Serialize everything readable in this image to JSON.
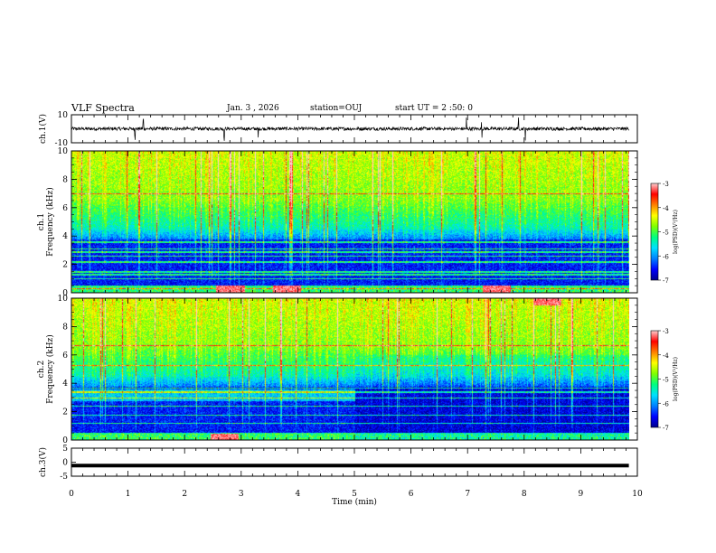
{
  "header": {
    "title": "VLF Spectra",
    "date": "Jan. 3 , 2026",
    "station": "station=OUJ",
    "start_time": "start UT =  2 :50: 0"
  },
  "colors": {
    "colormap": [
      "#00008c",
      "#0000ff",
      "#0080ff",
      "#00e0ff",
      "#00ff80",
      "#80ff00",
      "#ffff00",
      "#ff8000",
      "#ff0000",
      "#ffd0d0"
    ],
    "trace": "#000000",
    "axis": "#000000"
  },
  "chart_data": [
    {
      "type": "line",
      "panel": "ch1-waveform",
      "ylabel": "ch.1(V)",
      "ylim": [
        -10,
        10
      ],
      "yticks": [
        "10",
        "-10"
      ],
      "description_baseline_value": 0,
      "noise_amplitude": 1.2,
      "spikes_min": [
        1.12,
        1.27,
        2.7,
        3.3,
        6.98,
        7.25,
        7.9,
        8.02
      ]
    },
    {
      "type": "heatmap",
      "panel": "ch1-spectrogram",
      "ylabel": "ch.1\nFrequency (kHz)",
      "xlim": [
        0,
        10
      ],
      "ylim": [
        0,
        10
      ],
      "yticks": [
        "0",
        "2",
        "4",
        "6",
        "8",
        "10"
      ],
      "data_extent_min": 9.85,
      "colorbar": {
        "label": "log(PSD)(V²/Hz)",
        "range": [
          -7,
          -3
        ],
        "ticks": [
          "-3",
          "-4",
          "-5",
          "-6",
          "-7"
        ]
      },
      "bands_khz": [
        0.3,
        0.5,
        1.0,
        1.3,
        1.5,
        2.2,
        2.6,
        2.9,
        3.1,
        3.6,
        7.0
      ],
      "hot_spots": [
        {
          "t": 2.8,
          "f": 0.3
        },
        {
          "t": 3.8,
          "f": 0.3
        },
        {
          "t": 7.5,
          "f": 0.3
        }
      ]
    },
    {
      "type": "heatmap",
      "panel": "ch2-spectrogram",
      "ylabel": "ch.2\nFrequency (kHz)",
      "xlim": [
        0,
        10
      ],
      "ylim": [
        0,
        10
      ],
      "yticks": [
        "0",
        "2",
        "4",
        "6",
        "8",
        "10"
      ],
      "data_extent_min": 9.85,
      "colorbar": {
        "label": "log(PSD)(V²/Hz)",
        "range": [
          -7,
          -3
        ],
        "ticks": [
          "-3",
          "-4",
          "-5",
          "-6",
          "-7"
        ]
      },
      "bands_khz": [
        0.5,
        1.2,
        1.8,
        2.4,
        3.0,
        3.4,
        3.7,
        5.3,
        6.7
      ],
      "hot_spots": [
        {
          "t": 2.7,
          "f": 0.2
        },
        {
          "t": 8.4,
          "f": 9.8
        }
      ]
    },
    {
      "type": "line",
      "panel": "ch3-waveform",
      "ylabel": "ch.3(V)",
      "ylim": [
        -5,
        5
      ],
      "yticks": [
        "5",
        "0",
        "-5"
      ],
      "constant_value": -1.2
    }
  ],
  "xaxis": {
    "label": "Time (min)",
    "ticks": [
      "0",
      "1",
      "2",
      "3",
      "4",
      "5",
      "6",
      "7",
      "8",
      "9",
      "10"
    ]
  }
}
